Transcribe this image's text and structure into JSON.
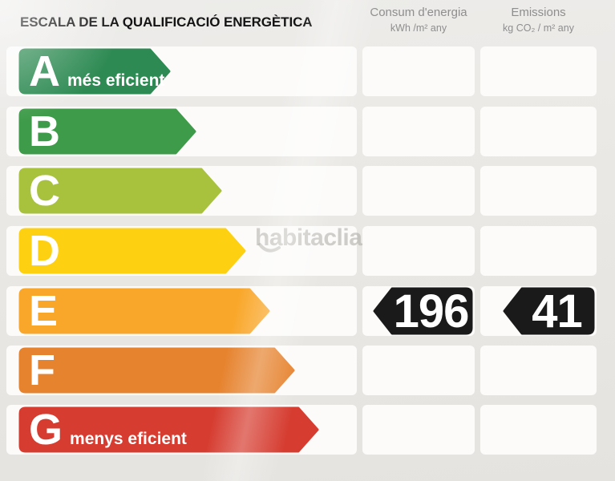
{
  "title": "ESCALA DE LA QUALIFICACIÓ ENERGÈTICA",
  "columns": {
    "consumption": {
      "label": "Consum d'energia",
      "units": "kWh /m² any"
    },
    "emissions": {
      "label": "Emissions",
      "units": "kg CO₂ / m² any"
    }
  },
  "watermark": {
    "text": "habitaclia"
  },
  "ratings": [
    {
      "letter": "A",
      "note": "més eficient",
      "color": "#2d8a52",
      "arrow_width": 190
    },
    {
      "letter": "B",
      "note": "",
      "color": "#3e9b49",
      "arrow_width": 222
    },
    {
      "letter": "C",
      "note": "",
      "color": "#a8c23e",
      "arrow_width": 254
    },
    {
      "letter": "D",
      "note": "",
      "color": "#fdd112",
      "arrow_width": 284
    },
    {
      "letter": "E",
      "note": "",
      "color": "#f9a72a",
      "arrow_width": 314
    },
    {
      "letter": "F",
      "note": "",
      "color": "#e6832f",
      "arrow_width": 345
    },
    {
      "letter": "G",
      "note": "menys eficient",
      "color": "#d63c30",
      "arrow_width": 375
    }
  ],
  "result": {
    "rating": "E",
    "consumption": "196",
    "emissions": "41",
    "arrow_color": "#1a1a1a",
    "text_color": "#ffffff"
  },
  "chart_data": {
    "type": "bar",
    "title": "ESCALA DE LA QUALIFICACIÓ ENERGÈTICA",
    "categories": [
      "A",
      "B",
      "C",
      "D",
      "E",
      "F",
      "G"
    ],
    "values": [
      190,
      222,
      254,
      284,
      314,
      345,
      375
    ],
    "colors": [
      "#2d8a52",
      "#3e9b49",
      "#a8c23e",
      "#fdd112",
      "#f9a72a",
      "#e6832f",
      "#d63c30"
    ],
    "xlabel": "",
    "ylabel": "",
    "grid": false,
    "legend_position": "none",
    "annotations": {
      "assigned_rating": "E",
      "consum_energia": 196,
      "consum_units": "kWh /m² any",
      "emissions": 41,
      "emissions_units": "kg CO₂ / m² any",
      "most_efficient_label": "A més eficient",
      "least_efficient_label": "G menys eficient",
      "values_are": "relative arrow lengths of the rating scale (pixels)"
    }
  }
}
